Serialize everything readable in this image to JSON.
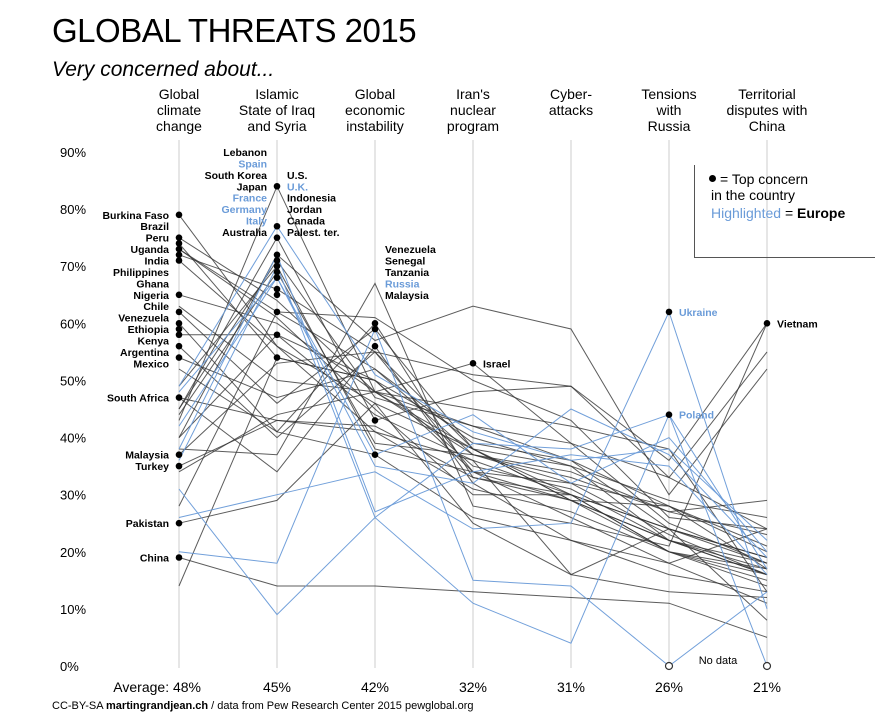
{
  "title": "GLOBAL THREATS 2015",
  "subtitle": "Very concerned about...",
  "footer": {
    "license": "CC-BY-SA",
    "site": "martingrandjean.ch",
    "source": "/ data from Pew Research Center 2015 pewglobal.org"
  },
  "legend": {
    "dot_text": "= Top concern",
    "line2": "in the country",
    "highlight_word": "Highlighted",
    "equals_text": " = ",
    "europe_word": "Europe"
  },
  "colors": {
    "world": "#333333",
    "europe": "#6a9bd8",
    "axis": "#cccccc"
  },
  "chart_data": {
    "type": "line",
    "title": "GLOBAL THREATS 2015",
    "subtitle": "Very concerned about...",
    "categories": [
      [
        "Global",
        "climate",
        "change"
      ],
      [
        "Islamic",
        "State of Iraq",
        "and Syria"
      ],
      [
        "Global",
        "economic",
        "instability"
      ],
      [
        "Iran's",
        "nuclear",
        "program"
      ],
      [
        "Cyber-",
        "attacks"
      ],
      [
        "Tensions",
        "with",
        "Russia"
      ],
      [
        "Territorial",
        "disputes with",
        "China"
      ]
    ],
    "averages": [
      "Average: 48%",
      "45%",
      "42%",
      "32%",
      "31%",
      "26%",
      "21%"
    ],
    "y_ticks": [
      {
        "v": 0,
        "label": "0%"
      },
      {
        "v": 10,
        "label": "10%"
      },
      {
        "v": 20,
        "label": "20%"
      },
      {
        "v": 30,
        "label": "30%"
      },
      {
        "v": 40,
        "label": "40%"
      },
      {
        "v": 50,
        "label": "50%"
      },
      {
        "v": 60,
        "label": "60%"
      },
      {
        "v": 70,
        "label": "70%"
      },
      {
        "v": 80,
        "label": "80%"
      },
      {
        "v": 90,
        "label": "90%"
      }
    ],
    "ylim": [
      0,
      90
    ],
    "no_data_label": "No data",
    "series": [
      {
        "name": "Burkina Faso",
        "values": [
          79,
          56,
          46,
          38,
          30,
          24,
          18
        ]
      },
      {
        "name": "Brazil",
        "values": [
          75,
          64,
          48,
          42,
          36,
          24,
          19
        ]
      },
      {
        "name": "Peru",
        "values": [
          74,
          54,
          50,
          40,
          35,
          22,
          18
        ]
      },
      {
        "name": "Uganda",
        "values": [
          73,
          61,
          45,
          30,
          30,
          24,
          19
        ]
      },
      {
        "name": "India",
        "values": [
          73,
          62,
          52,
          39,
          36,
          28,
          21
        ]
      },
      {
        "name": "Philippines",
        "values": [
          72,
          66,
          55,
          51,
          49,
          36,
          60
        ]
      },
      {
        "name": "Ghana",
        "values": [
          71,
          56,
          41,
          31,
          27,
          20,
          16
        ]
      },
      {
        "name": "Nigeria",
        "values": [
          65,
          60,
          48,
          38,
          35,
          29,
          26
        ]
      },
      {
        "name": "Chile",
        "values": [
          63,
          50,
          48,
          37,
          32,
          23,
          16
        ]
      },
      {
        "name": "Venezuela",
        "values": [
          62,
          46,
          59,
          38,
          29,
          20,
          15
        ]
      },
      {
        "name": "Ethiopia",
        "values": [
          60,
          41,
          37,
          26,
          22,
          18,
          24
        ]
      },
      {
        "name": "Kenya",
        "values": [
          58,
          58,
          50,
          35,
          31,
          22,
          17
        ]
      },
      {
        "name": "Argentina",
        "values": [
          56,
          40,
          55,
          34,
          29,
          22,
          16
        ]
      },
      {
        "name": "Mexico",
        "values": [
          54,
          47,
          52,
          37,
          34,
          27,
          23
        ]
      },
      {
        "name": "South Africa",
        "values": [
          47,
          43,
          42,
          33,
          29,
          22,
          16
        ]
      },
      {
        "name": "Malaysia",
        "values": [
          37,
          53,
          55,
          38,
          29,
          28,
          20
        ]
      },
      {
        "name": "Turkey",
        "values": [
          35,
          43,
          41,
          36,
          16,
          24,
          8
        ]
      },
      {
        "name": "Pakistan",
        "values": [
          25,
          29,
          46,
          25,
          16,
          13,
          12
        ]
      },
      {
        "name": "China",
        "values": [
          19,
          14,
          14,
          13,
          12,
          11,
          5
        ]
      },
      {
        "name": "Lebanon",
        "values": [
          43,
          84,
          48,
          45,
          42,
          38,
          13
        ]
      },
      {
        "name": "South Korea",
        "values": [
          40,
          72,
          57,
          63,
          59,
          30,
          52
        ]
      },
      {
        "name": "Japan",
        "values": [
          45,
          71,
          47,
          42,
          39,
          33,
          55
        ]
      },
      {
        "name": "Australia",
        "values": [
          44,
          69,
          39,
          37,
          33,
          27,
          29
        ]
      },
      {
        "name": "U.S.",
        "values": [
          45,
          75,
          43,
          48,
          49,
          33,
          24
        ]
      },
      {
        "name": "Indonesia",
        "values": [
          40,
          58,
          44,
          36,
          30,
          20,
          14
        ]
      },
      {
        "name": "Jordan",
        "values": [
          28,
          62,
          61,
          50,
          43,
          26,
          24
        ]
      },
      {
        "name": "Canada",
        "values": [
          49,
          70,
          38,
          34,
          32,
          28,
          17
        ]
      },
      {
        "name": "Palest. ter.",
        "values": [
          14,
          54,
          50,
          34,
          26,
          18,
          11
        ]
      },
      {
        "name": "Senegal",
        "values": [
          52,
          41,
          60,
          33,
          30,
          20,
          17
        ]
      },
      {
        "name": "Tanzania",
        "values": [
          47,
          34,
          56,
          32,
          22,
          16,
          13
        ]
      },
      {
        "name": "Israel",
        "values": [
          34,
          44,
          48,
          53,
          39,
          25,
          18
        ]
      },
      {
        "name": "Vietnam",
        "values": [
          38,
          37,
          67,
          28,
          25,
          21,
          60
        ]
      },
      {
        "name": "Spain",
        "europe": true,
        "values": [
          49,
          77,
          51,
          41,
          36,
          38,
          22
        ]
      },
      {
        "name": "France",
        "europe": true,
        "values": [
          42,
          68,
          37,
          44,
          32,
          40,
          20
        ]
      },
      {
        "name": "Germany",
        "europe": true,
        "values": [
          36,
          70,
          26,
          39,
          38,
          44,
          17
        ]
      },
      {
        "name": "Italy",
        "europe": true,
        "values": [
          48,
          68,
          35,
          32,
          45,
          37,
          19
        ]
      },
      {
        "name": "U.K.",
        "europe": true,
        "values": [
          38,
          72,
          27,
          34,
          37,
          35,
          16
        ]
      },
      {
        "name": "Russia",
        "europe": true,
        "values": [
          20,
          18,
          59,
          15,
          14,
          null,
          13
        ]
      },
      {
        "name": "Ukraine",
        "europe": true,
        "values": [
          26,
          30,
          34,
          24,
          25,
          62,
          10
        ]
      },
      {
        "name": "Poland",
        "europe": true,
        "values": [
          31,
          9,
          26,
          11,
          4,
          44,
          null
        ]
      }
    ],
    "labels": [
      {
        "col": 0,
        "v": 79,
        "text": "Burkina Faso"
      },
      {
        "col": 0,
        "v": 77,
        "text": "Brazil"
      },
      {
        "col": 0,
        "v": 75,
        "text": "Peru"
      },
      {
        "col": 0,
        "v": 73,
        "text": "Uganda"
      },
      {
        "col": 0,
        "v": 71,
        "text": "India"
      },
      {
        "col": 0,
        "v": 69,
        "text": "Philippines"
      },
      {
        "col": 0,
        "v": 67,
        "text": "Ghana"
      },
      {
        "col": 0,
        "v": 65,
        "text": "Nigeria"
      },
      {
        "col": 0,
        "v": 63,
        "text": "Chile"
      },
      {
        "col": 0,
        "v": 61,
        "text": "Venezuela"
      },
      {
        "col": 0,
        "v": 59,
        "text": "Ethiopia"
      },
      {
        "col": 0,
        "v": 57,
        "text": "Kenya"
      },
      {
        "col": 0,
        "v": 55,
        "text": "Argentina"
      },
      {
        "col": 0,
        "v": 53,
        "text": "Mexico"
      },
      {
        "col": 0,
        "v": 47,
        "text": "South Africa"
      },
      {
        "col": 0,
        "v": 37,
        "text": "Malaysia"
      },
      {
        "col": 0,
        "v": 35,
        "text": "Turkey"
      },
      {
        "col": 0,
        "v": 25,
        "text": "Pakistan"
      },
      {
        "col": 0,
        "v": 19,
        "text": "China"
      },
      {
        "col": 1,
        "v": 90,
        "text": "Lebanon"
      },
      {
        "col": 1,
        "v": 88,
        "text": "Spain",
        "europe": true
      },
      {
        "col": 1,
        "v": 86,
        "text": "South Korea"
      },
      {
        "col": 1,
        "v": 84,
        "text": "Japan"
      },
      {
        "col": 1,
        "v": 82,
        "text": "France",
        "europe": true
      },
      {
        "col": 1,
        "v": 80,
        "text": "Germany",
        "europe": true
      },
      {
        "col": 1,
        "v": 78,
        "text": "Italy",
        "europe": true
      },
      {
        "col": 1,
        "v": 76,
        "text": "Australia"
      },
      {
        "col": 1,
        "v": 86,
        "text": "U.S.",
        "right": true
      },
      {
        "col": 1,
        "v": 84,
        "text": "U.K.",
        "right": true,
        "europe": true
      },
      {
        "col": 1,
        "v": 82,
        "text": "Indonesia",
        "right": true
      },
      {
        "col": 1,
        "v": 80,
        "text": "Jordan",
        "right": true
      },
      {
        "col": 1,
        "v": 78,
        "text": "Canada",
        "right": true
      },
      {
        "col": 1,
        "v": 76,
        "text": "Palest. ter.",
        "right": true
      },
      {
        "col": 2,
        "v": 73,
        "text": "Venezuela",
        "right": true
      },
      {
        "col": 2,
        "v": 71,
        "text": "Senegal",
        "right": true
      },
      {
        "col": 2,
        "v": 69,
        "text": "Tanzania",
        "right": true
      },
      {
        "col": 2,
        "v": 67,
        "text": "Russia",
        "right": true,
        "europe": true
      },
      {
        "col": 2,
        "v": 65,
        "text": "Malaysia",
        "right": true
      },
      {
        "col": 3,
        "v": 53,
        "text": "Israel",
        "right": true
      },
      {
        "col": 5,
        "v": 62,
        "text": "Ukraine",
        "right": true,
        "europe": true
      },
      {
        "col": 5,
        "v": 44,
        "text": "Poland",
        "right": true,
        "europe": true
      },
      {
        "col": 6,
        "v": 60,
        "text": "Vietnam",
        "right": true
      }
    ],
    "dots": [
      {
        "col": 0,
        "v": 79
      },
      {
        "col": 0,
        "v": 75
      },
      {
        "col": 0,
        "v": 74
      },
      {
        "col": 0,
        "v": 73
      },
      {
        "col": 0,
        "v": 72
      },
      {
        "col": 0,
        "v": 71
      },
      {
        "col": 0,
        "v": 65
      },
      {
        "col": 0,
        "v": 62
      },
      {
        "col": 0,
        "v": 60
      },
      {
        "col": 0,
        "v": 59
      },
      {
        "col": 0,
        "v": 58
      },
      {
        "col": 0,
        "v": 56
      },
      {
        "col": 0,
        "v": 54
      },
      {
        "col": 0,
        "v": 47
      },
      {
        "col": 0,
        "v": 37
      },
      {
        "col": 0,
        "v": 35
      },
      {
        "col": 0,
        "v": 25
      },
      {
        "col": 0,
        "v": 19
      },
      {
        "col": 1,
        "v": 84
      },
      {
        "col": 1,
        "v": 77
      },
      {
        "col": 1,
        "v": 75
      },
      {
        "col": 1,
        "v": 72
      },
      {
        "col": 1,
        "v": 71
      },
      {
        "col": 1,
        "v": 70
      },
      {
        "col": 1,
        "v": 69
      },
      {
        "col": 1,
        "v": 68
      },
      {
        "col": 1,
        "v": 66
      },
      {
        "col": 1,
        "v": 65
      },
      {
        "col": 1,
        "v": 62
      },
      {
        "col": 1,
        "v": 58
      },
      {
        "col": 1,
        "v": 54
      },
      {
        "col": 2,
        "v": 60
      },
      {
        "col": 2,
        "v": 59
      },
      {
        "col": 2,
        "v": 56
      },
      {
        "col": 2,
        "v": 43
      },
      {
        "col": 2,
        "v": 37
      },
      {
        "col": 3,
        "v": 53
      },
      {
        "col": 5,
        "v": 62
      },
      {
        "col": 5,
        "v": 44
      },
      {
        "col": 6,
        "v": 60
      }
    ],
    "no_data_points": [
      {
        "col": 5,
        "v": 0
      },
      {
        "col": 6,
        "v": 0
      }
    ],
    "grid": false,
    "legend_position": "top-right"
  }
}
